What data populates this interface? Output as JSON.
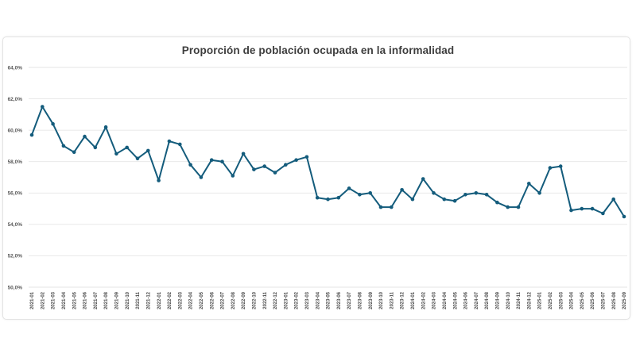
{
  "chart_data": {
    "type": "line",
    "title": "Proporción de población ocupada en la informalidad",
    "xlabel": "",
    "ylabel": "",
    "ylim": [
      50,
      64
    ],
    "ytick_step": 2,
    "y_tick_labels": [
      "64,0%",
      "62,0%",
      "60,0%",
      "58,0%",
      "56,0%",
      "54,0%",
      "52,0%",
      "50,0%"
    ],
    "grid": "horizontal",
    "legend": "none",
    "line_color": "#145c7c",
    "marker": "circle",
    "decimal_separator": ",",
    "x": [
      "2021-01",
      "2021-02",
      "2021-03",
      "2021-04",
      "2021-05",
      "2021-06",
      "2021-07",
      "2021-08",
      "2021-09",
      "2021-10",
      "2021-11",
      "2021-12",
      "2022-01",
      "2022-02",
      "2022-03",
      "2022-04",
      "2022-05",
      "2022-06",
      "2022-07",
      "2022-08",
      "2022-09",
      "2022-10",
      "2022-11",
      "2022-12",
      "2023-01",
      "2023-02",
      "2023-03",
      "2023-04",
      "2023-05",
      "2023-06",
      "2023-07",
      "2023-08",
      "2023-09",
      "2023-10",
      "2023-11",
      "2023-12",
      "2024-01",
      "2024-02",
      "2024-03",
      "2024-04",
      "2024-05",
      "2024-06",
      "2024-07",
      "2024-08",
      "2024-09",
      "2024-10",
      "2024-11",
      "2024-12",
      "2025-01",
      "2025-02",
      "2025-03",
      "2025-04",
      "2025-05",
      "2025-06",
      "2025-07",
      "2025-08",
      "2025-09"
    ],
    "values": [
      59.7,
      61.5,
      60.4,
      59.0,
      58.6,
      59.6,
      58.9,
      60.2,
      58.5,
      58.9,
      58.2,
      58.7,
      56.8,
      59.3,
      59.1,
      57.8,
      57.0,
      58.1,
      58.0,
      57.1,
      58.5,
      57.5,
      57.7,
      57.3,
      57.8,
      58.1,
      58.3,
      55.7,
      55.6,
      55.7,
      56.3,
      55.9,
      56.0,
      55.1,
      55.1,
      56.2,
      55.6,
      56.9,
      56.0,
      55.6,
      55.5,
      55.9,
      56.0,
      55.9,
      55.4,
      55.1,
      55.1,
      56.6,
      56.0,
      57.6,
      57.7,
      54.9,
      55.0,
      55.0,
      54.7,
      55.6,
      54.5
    ]
  }
}
